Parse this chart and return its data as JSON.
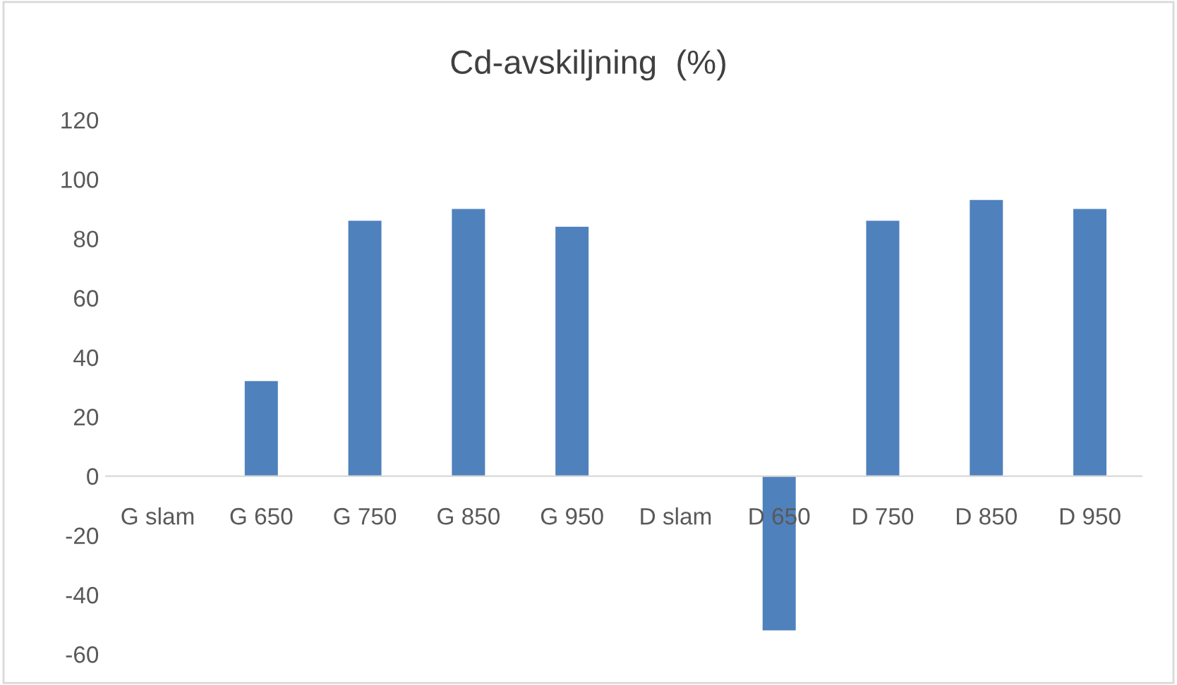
{
  "chart_data": {
    "type": "bar",
    "title": "Cd-avskiljning  (%)",
    "categories": [
      "G slam",
      "G 650",
      "G 750",
      "G 850",
      "G 950",
      "D slam",
      "D 650",
      "D 750",
      "D 850",
      "D 950"
    ],
    "values": [
      0,
      32,
      86,
      90,
      84,
      0,
      -52,
      86,
      93,
      90
    ],
    "color": "#4f81bd",
    "ylim": [
      -60,
      120
    ],
    "yticks": [
      -60,
      -40,
      -20,
      0,
      20,
      40,
      60,
      80,
      100,
      120
    ],
    "grid": false
  }
}
